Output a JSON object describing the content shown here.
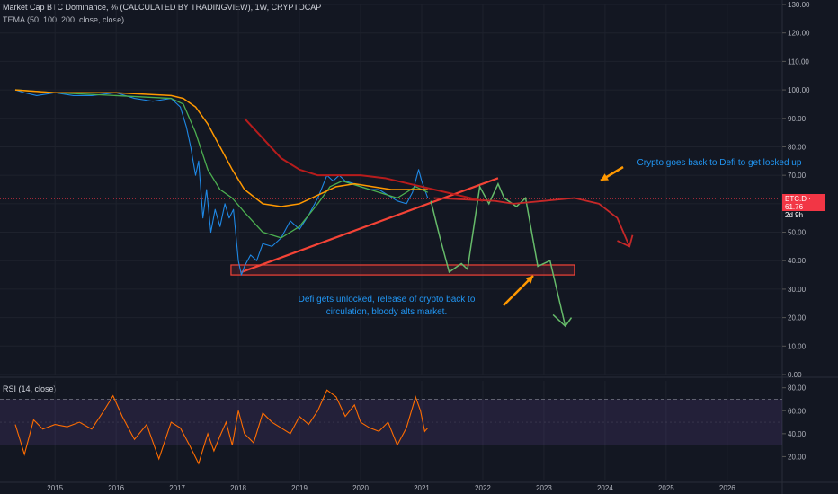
{
  "header": {
    "title": "Market Cap BTC Dominance, % (CALCULATED BY TRADINGVIEW), 1W, CRYPTOCAP",
    "indicator": "TEMA (50, 100, 200, close, close)"
  },
  "rsi_panel": {
    "label": "RSI (14, close)"
  },
  "badge": {
    "symbol": "BTC.D · 61.76",
    "countdown": "2d 9h"
  },
  "annotations": {
    "top": "Crypto goes back to Defi to get locked up",
    "bottom": "Defi gets unlocked, release of crypto back to circulation, bloody alts market."
  },
  "colors": {
    "background": "#131722",
    "price_line": "#1e88e5",
    "tema_fast": "#4caf50",
    "tema_mid": "#ff9800",
    "tema_slow": "#b71c1c",
    "rsi_line": "#ff6d00",
    "rsi_band": "#7e57c2",
    "annotation_text": "#2196f3",
    "trendline": "#f44336",
    "projection_green": "#66bb6a",
    "projection_red": "#c62828",
    "arrow": "#ff9800"
  },
  "chart_data": [
    {
      "type": "line",
      "title": "Market Cap BTC Dominance, % (CALCULATED BY TRADINGVIEW), 1W, CRYPTOCAP",
      "xlabel": "",
      "ylabel": "",
      "xlim": [
        2014.1,
        2026.9
      ],
      "ylim": [
        0,
        130
      ],
      "x_ticks": [
        "2015",
        "2016",
        "2017",
        "2018",
        "2019",
        "2020",
        "2021",
        "2022",
        "2023",
        "2024",
        "2025",
        "2026"
      ],
      "y_ticks": [
        "0.00",
        "10.00",
        "20.00",
        "30.00",
        "40.00",
        "50.00",
        "60.00",
        "70.00",
        "80.00",
        "90.00",
        "100.00",
        "110.00",
        "120.00",
        "130.00"
      ],
      "grid": true,
      "series": [
        {
          "x": [
            2014.35,
            2014.5,
            2014.7,
            2015.0,
            2015.3,
            2015.6,
            2016.0,
            2016.3,
            2016.6,
            2016.9,
            2017.05,
            2017.15,
            2017.22,
            2017.3,
            2017.35,
            2017.42,
            2017.48,
            2017.55,
            2017.62,
            2017.7,
            2017.78,
            2017.85,
            2017.92,
            2018.0,
            2018.05,
            2018.1,
            2018.2,
            2018.3,
            2018.4,
            2018.55,
            2018.7,
            2018.85,
            2019.0,
            2019.15,
            2019.3,
            2019.45,
            2019.55,
            2019.65,
            2019.75,
            2019.9,
            2020.0,
            2020.15,
            2020.3,
            2020.45,
            2020.6,
            2020.75,
            2020.85,
            2020.95,
            2021.0,
            2021.05,
            2021.1
          ],
          "values": [
            100,
            99,
            98,
            99,
            98,
            98,
            99,
            97,
            96,
            97,
            94,
            87,
            80,
            70,
            75,
            55,
            65,
            50,
            58,
            52,
            60,
            55,
            58,
            40,
            35,
            38,
            42,
            40,
            46,
            45,
            48,
            54,
            51,
            56,
            62,
            70,
            68,
            70,
            68,
            67,
            66,
            65,
            65,
            63,
            61,
            60,
            64,
            72,
            68,
            65,
            62
          ]
        },
        {
          "name": "TEMA 50",
          "x": [
            2014.35,
            2015.0,
            2016.0,
            2016.9,
            2017.1,
            2017.3,
            2017.5,
            2017.7,
            2017.9,
            2018.1,
            2018.4,
            2018.7,
            2019.0,
            2019.3,
            2019.5,
            2019.7,
            2020.0,
            2020.3,
            2020.6,
            2020.9,
            2021.1
          ],
          "values": [
            100,
            99,
            98,
            97,
            95,
            85,
            72,
            65,
            62,
            57,
            50,
            48,
            52,
            60,
            66,
            68,
            66,
            64,
            62,
            66,
            64
          ]
        },
        {
          "name": "TEMA 100",
          "x": [
            2014.35,
            2015.0,
            2016.0,
            2016.9,
            2017.1,
            2017.3,
            2017.5,
            2017.7,
            2017.9,
            2018.1,
            2018.4,
            2018.7,
            2019.0,
            2019.3,
            2019.6,
            2019.9,
            2020.2,
            2020.5,
            2020.8,
            2021.1
          ],
          "values": [
            100,
            99,
            99,
            98,
            97,
            94,
            88,
            80,
            72,
            65,
            60,
            59,
            60,
            63,
            66,
            67,
            66,
            65,
            65,
            65
          ]
        },
        {
          "name": "TEMA 200",
          "x": [
            2018.1,
            2018.4,
            2018.7,
            2019.0,
            2019.3,
            2019.6,
            2020.0,
            2020.4,
            2020.8,
            2021.2,
            2021.6,
            2022.0
          ],
          "values": [
            90,
            83,
            76,
            72,
            70,
            70,
            70,
            69,
            67,
            65,
            63,
            61
          ]
        }
      ]
    },
    {
      "type": "line",
      "title": "RSI (14, close)",
      "xlabel": "",
      "ylabel": "",
      "ylim": [
        0,
        86
      ],
      "y_ticks": [
        "20.00",
        "40.00",
        "60.00",
        "80.00"
      ],
      "bands": [
        30,
        70
      ],
      "series": [
        {
          "name": "RSI",
          "x": [
            2014.35,
            2014.5,
            2014.65,
            2014.8,
            2015.0,
            2015.2,
            2015.4,
            2015.6,
            2015.8,
            2015.95,
            2016.1,
            2016.3,
            2016.5,
            2016.7,
            2016.9,
            2017.05,
            2017.2,
            2017.35,
            2017.5,
            2017.6,
            2017.7,
            2017.8,
            2017.9,
            2018.0,
            2018.1,
            2018.25,
            2018.4,
            2018.55,
            2018.7,
            2018.85,
            2019.0,
            2019.15,
            2019.3,
            2019.45,
            2019.6,
            2019.75,
            2019.9,
            2020.0,
            2020.15,
            2020.3,
            2020.45,
            2020.6,
            2020.75,
            2020.9,
            2020.98,
            2021.05,
            2021.1
          ],
          "values": [
            48,
            22,
            52,
            44,
            48,
            46,
            50,
            44,
            60,
            73,
            55,
            35,
            48,
            18,
            50,
            45,
            30,
            14,
            40,
            25,
            38,
            50,
            30,
            60,
            40,
            32,
            58,
            50,
            45,
            40,
            55,
            48,
            60,
            78,
            72,
            55,
            65,
            50,
            45,
            42,
            50,
            30,
            45,
            72,
            60,
            42,
            45
          ]
        }
      ]
    }
  ]
}
